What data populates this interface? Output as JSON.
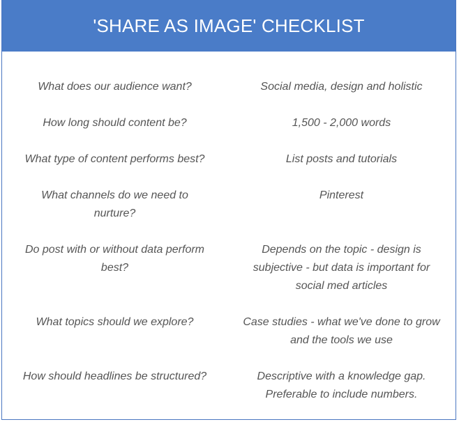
{
  "header": {
    "title": "'SHARE AS IMAGE' CHECKLIST"
  },
  "rows": [
    {
      "question": "What does our audience want?",
      "answer": "Social media, design and holistic"
    },
    {
      "question": "How long should content be?",
      "answer": "1,500 - 2,000 words"
    },
    {
      "question": "What type of content performs best?",
      "answer": "List posts and tutorials"
    },
    {
      "question": "What channels do we need to nurture?",
      "answer": "Pinterest"
    },
    {
      "question": "Do post with or without data perform best?",
      "answer": "Depends on the topic - design is subjective - but data is important for social med articles"
    },
    {
      "question": "What topics should we explore?",
      "answer": "Case studies - what we've done to grow and the tools we use"
    },
    {
      "question": "How should headlines be structured?",
      "answer": "Descriptive with a knowledge gap. Preferable to include numbers."
    }
  ],
  "colors": {
    "header_background": "#4a7cc8",
    "header_text": "#ffffff",
    "body_text": "#555555",
    "border": "#4a76c1"
  }
}
